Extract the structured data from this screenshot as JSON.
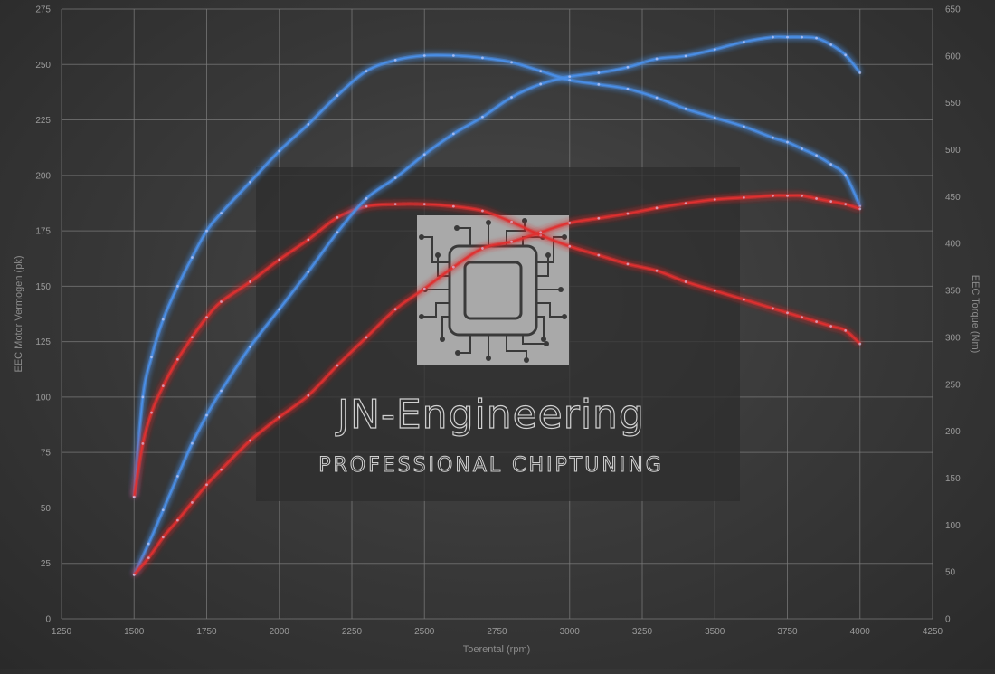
{
  "watermark": {
    "title": "JN-Engineering",
    "subtitle": "PROFESSIONAL CHIPTUNING",
    "logo_icon": "microchip-icon"
  },
  "chart_data": {
    "type": "line",
    "title": "",
    "xlabel": "Toerental (rpm)",
    "ylabel_left": "EEC Motor Vermogen (pk)",
    "ylabel_right": "EEC Torque (Nm)",
    "xlim": [
      1250,
      4250
    ],
    "ylim_left": [
      0,
      275
    ],
    "ylim_right": [
      0,
      650
    ],
    "x_ticks": [
      1250,
      1500,
      1750,
      2000,
      2250,
      2500,
      2750,
      3000,
      3250,
      3500,
      3750,
      4000,
      4250
    ],
    "y_ticks_left": [
      0,
      25,
      50,
      75,
      100,
      125,
      150,
      175,
      200,
      225,
      250,
      275
    ],
    "y_ticks_right": [
      0,
      50,
      100,
      150,
      200,
      250,
      300,
      350,
      400,
      450,
      500,
      550,
      600,
      650
    ],
    "grid": true,
    "colors": {
      "blue": "#4a8fe8",
      "red": "#e03030",
      "grid": "#7a7a7a"
    },
    "series": [
      {
        "color": "blue",
        "axis": "left",
        "x": [
          1500,
          1530,
          1560,
          1600,
          1650,
          1700,
          1750,
          1800,
          1900,
          2000,
          2100,
          2200,
          2300,
          2400,
          2500,
          2600,
          2700,
          2800,
          2900,
          3000,
          3100,
          3200,
          3300,
          3400,
          3500,
          3600,
          3700,
          3750,
          3800,
          3850,
          3900,
          3950,
          4000
        ],
        "y": [
          55,
          100,
          118,
          135,
          150,
          163,
          175,
          183,
          197,
          211,
          223,
          236,
          247,
          252,
          254,
          254,
          253,
          251,
          247,
          243,
          241,
          239,
          235,
          230,
          226,
          222,
          217,
          215,
          212,
          209,
          205,
          200,
          186
        ]
      },
      {
        "color": "red",
        "axis": "left",
        "x": [
          1500,
          1530,
          1560,
          1600,
          1650,
          1700,
          1750,
          1800,
          1900,
          2000,
          2100,
          2200,
          2300,
          2400,
          2500,
          2600,
          2700,
          2800,
          2900,
          3000,
          3100,
          3200,
          3300,
          3400,
          3500,
          3600,
          3700,
          3750,
          3800,
          3850,
          3900,
          3950,
          4000
        ],
        "y": [
          55,
          79,
          93,
          105,
          117,
          127,
          136,
          143,
          152,
          162,
          171,
          181,
          186,
          187,
          187,
          186,
          184,
          179,
          173,
          168,
          164,
          160,
          157,
          152,
          148,
          144,
          140,
          138,
          136,
          134,
          132,
          130,
          124
        ]
      },
      {
        "color": "blue",
        "axis": "right",
        "x": [
          1500,
          1550,
          1600,
          1650,
          1700,
          1750,
          1800,
          1900,
          2000,
          2100,
          2200,
          2300,
          2400,
          2500,
          2600,
          2700,
          2800,
          2900,
          3000,
          3100,
          3200,
          3300,
          3400,
          3500,
          3600,
          3700,
          3750,
          3800,
          3850,
          3900,
          3950,
          4000
        ],
        "y": [
          47,
          80,
          116,
          152,
          187,
          217,
          243,
          290,
          330,
          370,
          412,
          448,
          470,
          495,
          517,
          535,
          556,
          570,
          578,
          582,
          588,
          597,
          600,
          607,
          615,
          620,
          620,
          620,
          619,
          612,
          601,
          582
        ]
      },
      {
        "color": "red",
        "axis": "right",
        "x": [
          1500,
          1550,
          1600,
          1650,
          1700,
          1750,
          1800,
          1900,
          2000,
          2100,
          2200,
          2300,
          2400,
          2500,
          2600,
          2700,
          2800,
          2900,
          3000,
          3100,
          3200,
          3300,
          3400,
          3500,
          3600,
          3700,
          3750,
          3800,
          3850,
          3900,
          3950,
          4000
        ],
        "y": [
          47,
          65,
          87,
          105,
          124,
          143,
          159,
          190,
          215,
          238,
          270,
          300,
          330,
          352,
          375,
          395,
          402,
          412,
          422,
          427,
          432,
          438,
          443,
          447,
          449,
          451,
          451,
          451,
          448,
          445,
          442,
          437
        ]
      }
    ]
  }
}
